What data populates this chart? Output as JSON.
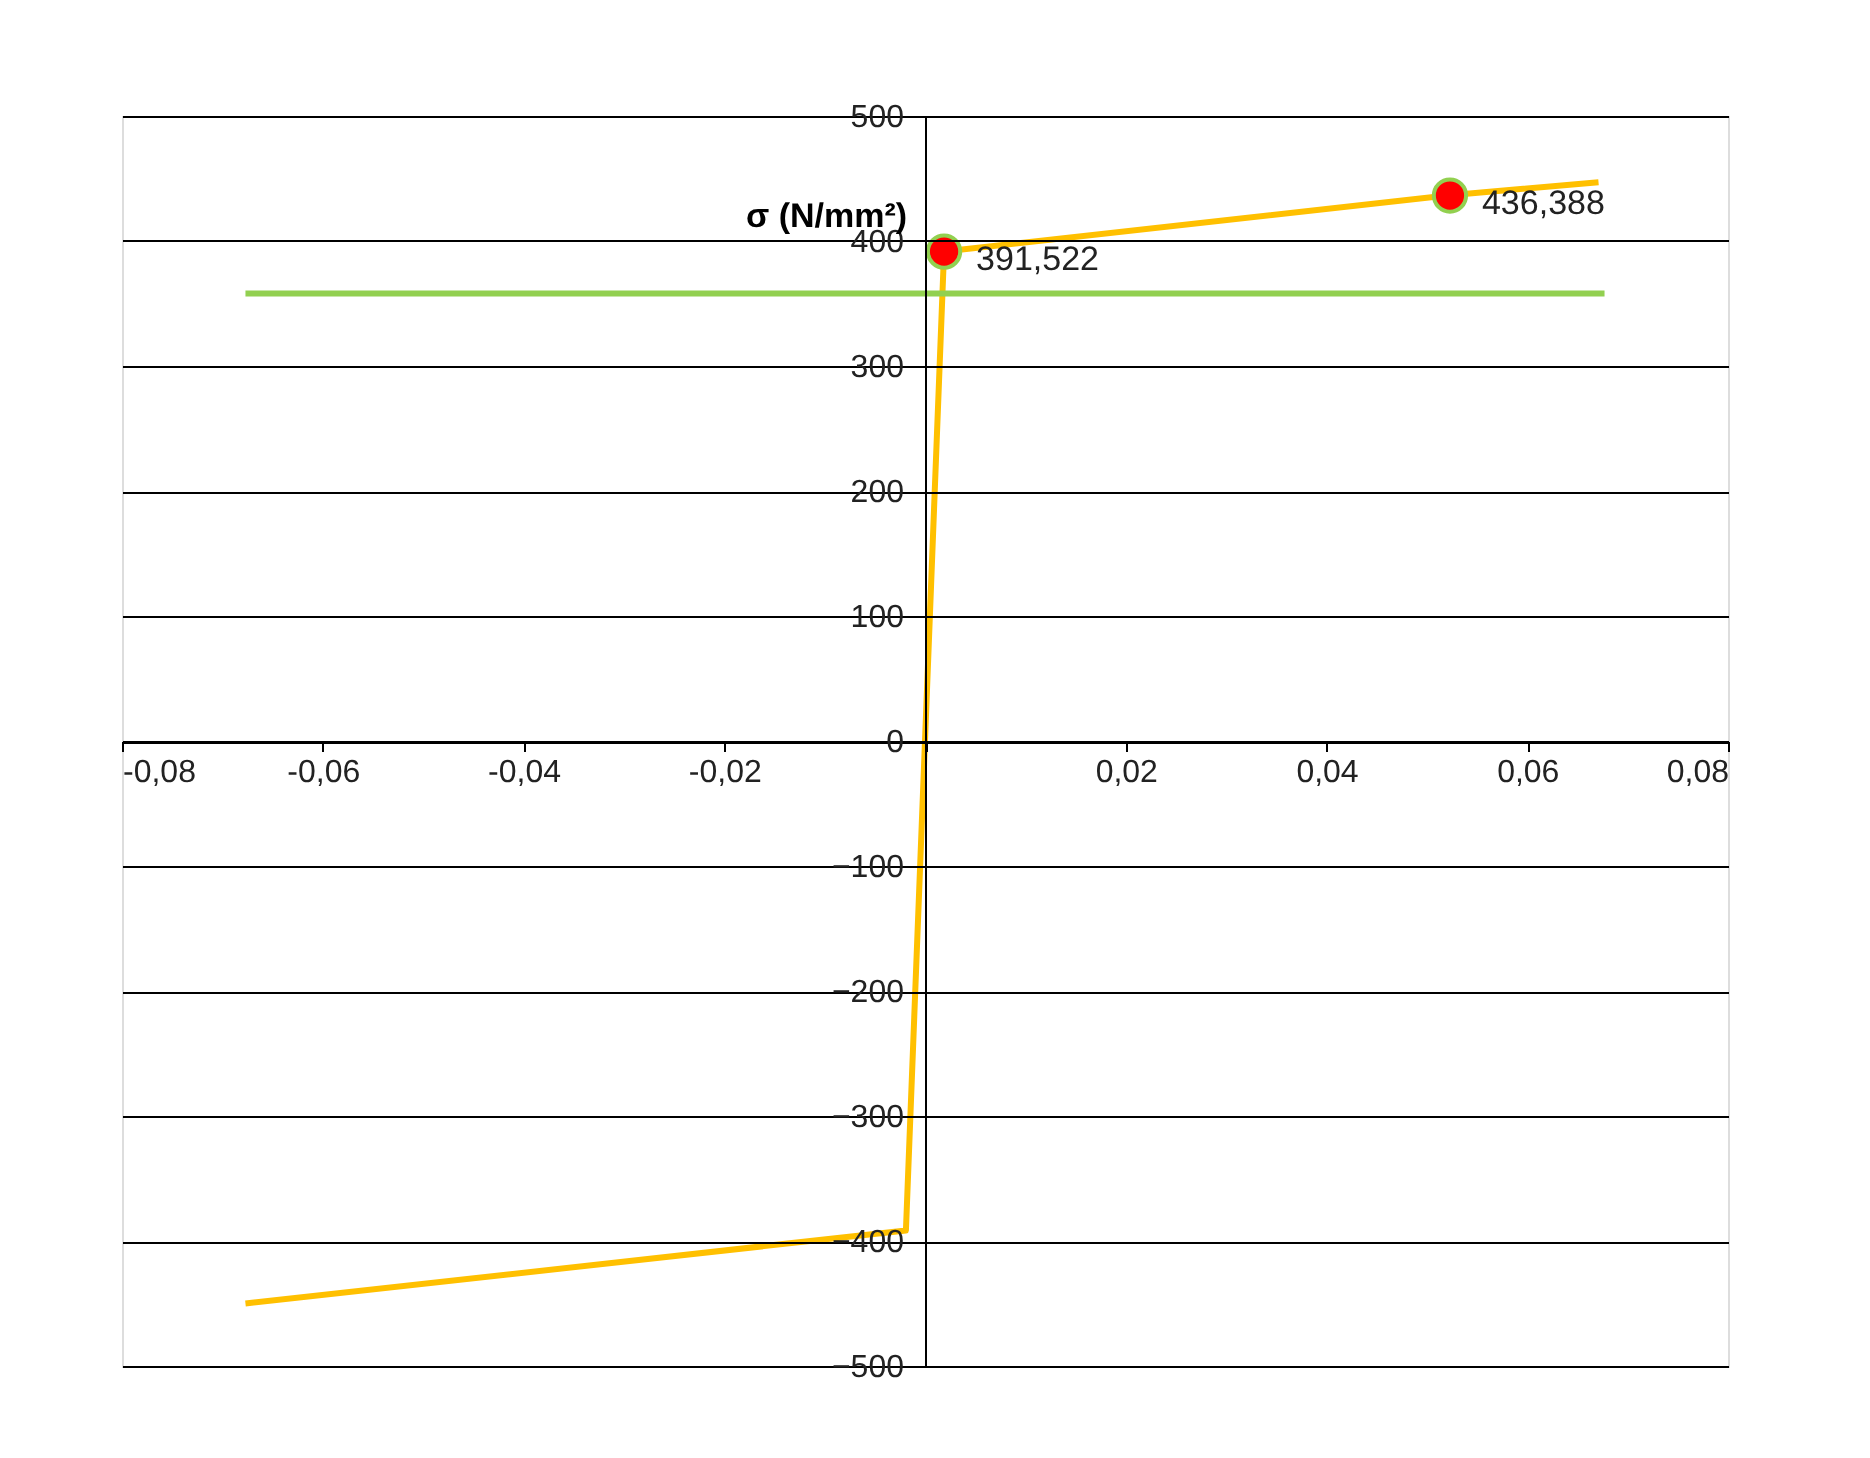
{
  "chart_data": {
    "type": "line",
    "ylabel": "σ (N/mm²)",
    "xlim": [
      -0.08,
      0.08
    ],
    "xticks": [
      {
        "value": -0.08,
        "label": "-0,08"
      },
      {
        "value": -0.06,
        "label": "-0,06"
      },
      {
        "value": -0.04,
        "label": "-0,04"
      },
      {
        "value": -0.02,
        "label": "-0,02"
      },
      {
        "value": 0,
        "label": null
      },
      {
        "value": 0.02,
        "label": "0,02"
      },
      {
        "value": 0.04,
        "label": "0,04"
      },
      {
        "value": 0.06,
        "label": "0,06"
      },
      {
        "value": 0.08,
        "label": "0,08"
      }
    ],
    "ylim": [
      -500,
      500
    ],
    "yticks": [
      -500,
      -400,
      -300,
      -200,
      -100,
      0,
      100,
      200,
      300,
      400,
      500
    ],
    "grid": "y",
    "line_style": "solid",
    "series": [
      {
        "color": "#ffc000",
        "x": [
          -0.0677,
          -0.0019,
          0.0019,
          0.052,
          0.0671
        ],
        "values": [
          -450,
          -391.522,
          391.522,
          436.388,
          447
        ]
      },
      {
        "color": "#92d050",
        "x": [
          -0.0677,
          0.0677
        ],
        "values": [
          358,
          358
        ]
      },
      {
        "type": "scatter",
        "color": "#ff0000",
        "marker": "circle",
        "x": [
          0.0019,
          0.0523
        ],
        "values": [
          391.522,
          436.388
        ]
      }
    ],
    "annotations": [
      {
        "text": "391,522",
        "x": 0.0019,
        "y": 391.522
      },
      {
        "text": "436,388",
        "x": 0.0523,
        "y": 436.388
      }
    ]
  }
}
